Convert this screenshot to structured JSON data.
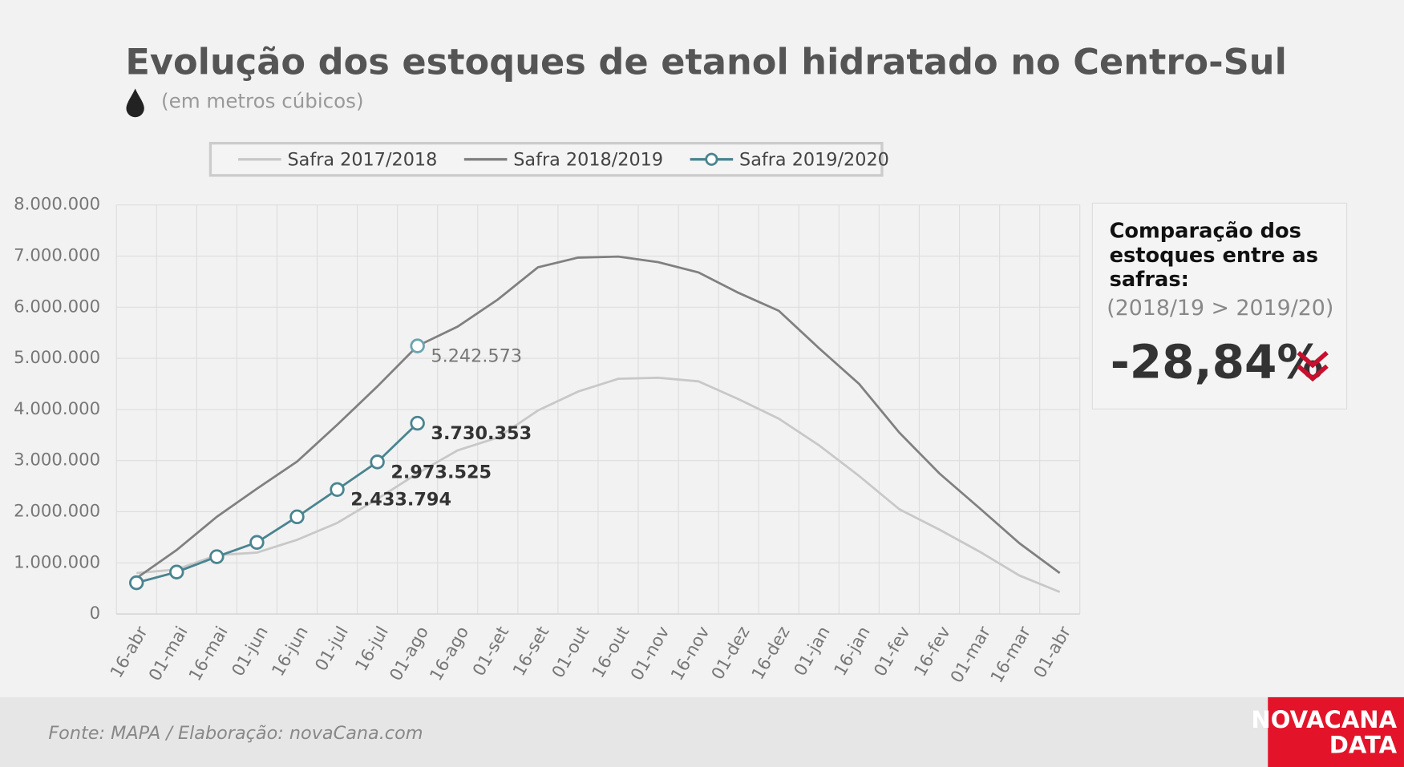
{
  "chart_data": {
    "type": "line",
    "title": "Evolução dos estoques de etanol hidratado no Centro-Sul",
    "subtitle": "(em metros cúbicos)",
    "categories": [
      "16-abr",
      "01-mai",
      "16-mai",
      "01-jun",
      "16-jun",
      "01-jul",
      "16-jul",
      "01-ago",
      "16-ago",
      "01-set",
      "16-set",
      "01-out",
      "16-out",
      "01-nov",
      "16-nov",
      "01-dez",
      "16-dez",
      "01-jan",
      "16-jan",
      "01-fev",
      "16-fev",
      "01-mar",
      "16-mar",
      "01-abr"
    ],
    "series": [
      {
        "name": "Safra 2017/2018",
        "color": "#c8c8c8",
        "values": [
          800000,
          870000,
          1150000,
          1200000,
          1450000,
          1780000,
          2250000,
          2750000,
          3200000,
          3450000,
          3980000,
          4350000,
          4600000,
          4620000,
          4550000,
          4200000,
          3820000,
          3300000,
          2700000,
          2050000,
          1650000,
          1220000,
          750000,
          430000
        ]
      },
      {
        "name": "Safra 2018/2019",
        "color": "#808080",
        "values": [
          700000,
          1250000,
          1900000,
          2450000,
          2980000,
          3700000,
          4450000,
          5242573,
          5620000,
          6150000,
          6780000,
          6970000,
          6990000,
          6880000,
          6680000,
          6280000,
          5930000,
          5200000,
          4500000,
          3550000,
          2750000,
          2070000,
          1380000,
          800000
        ],
        "value_labels": [
          null,
          null,
          null,
          null,
          null,
          null,
          null,
          "5.242.573",
          null,
          null,
          null,
          null,
          null,
          null,
          null,
          null,
          null,
          null,
          null,
          null,
          null,
          null,
          null,
          null
        ]
      },
      {
        "name": "Safra 2019/2020",
        "color": "#4a8490",
        "markers": true,
        "values": [
          610000,
          820000,
          1120000,
          1400000,
          1900000,
          2433794,
          2973525,
          3730353,
          null,
          null,
          null,
          null,
          null,
          null,
          null,
          null,
          null,
          null,
          null,
          null,
          null,
          null,
          null,
          null
        ],
        "value_labels": [
          null,
          null,
          null,
          null,
          null,
          "2.433.794",
          "2.973.525",
          "3.730.353",
          null,
          null,
          null,
          null,
          null,
          null,
          null,
          null,
          null,
          null,
          null,
          null,
          null,
          null,
          null,
          null
        ]
      }
    ],
    "ylim": [
      0,
      8000000
    ],
    "yticks": [
      0,
      {
        "value": 1000000,
        "label": "1.000.000"
      },
      {
        "value": 2000000,
        "label": "2.000.000"
      },
      {
        "value": 3000000,
        "label": "3.000.000"
      },
      {
        "value": 4000000,
        "label": "4.000.000"
      },
      {
        "value": 5000000,
        "label": "5.000.000"
      },
      {
        "value": 6000000,
        "label": "6.000.000"
      },
      {
        "value": 7000000,
        "label": "7.000.000"
      },
      {
        "value": 8000000,
        "label": "8.000.000"
      }
    ],
    "grid": true,
    "legend": "top"
  },
  "panel": {
    "lines": [
      "Comparação dos",
      "estoques entre as",
      "safras:"
    ],
    "comparison": "(2018/19 > 2019/20)",
    "change": "-28,84%"
  },
  "footer": {
    "source": "Fonte: MAPA  / Elaboração: novaCana.com"
  },
  "logo": {
    "line1": "NOVACANA",
    "line2": "DATA"
  }
}
